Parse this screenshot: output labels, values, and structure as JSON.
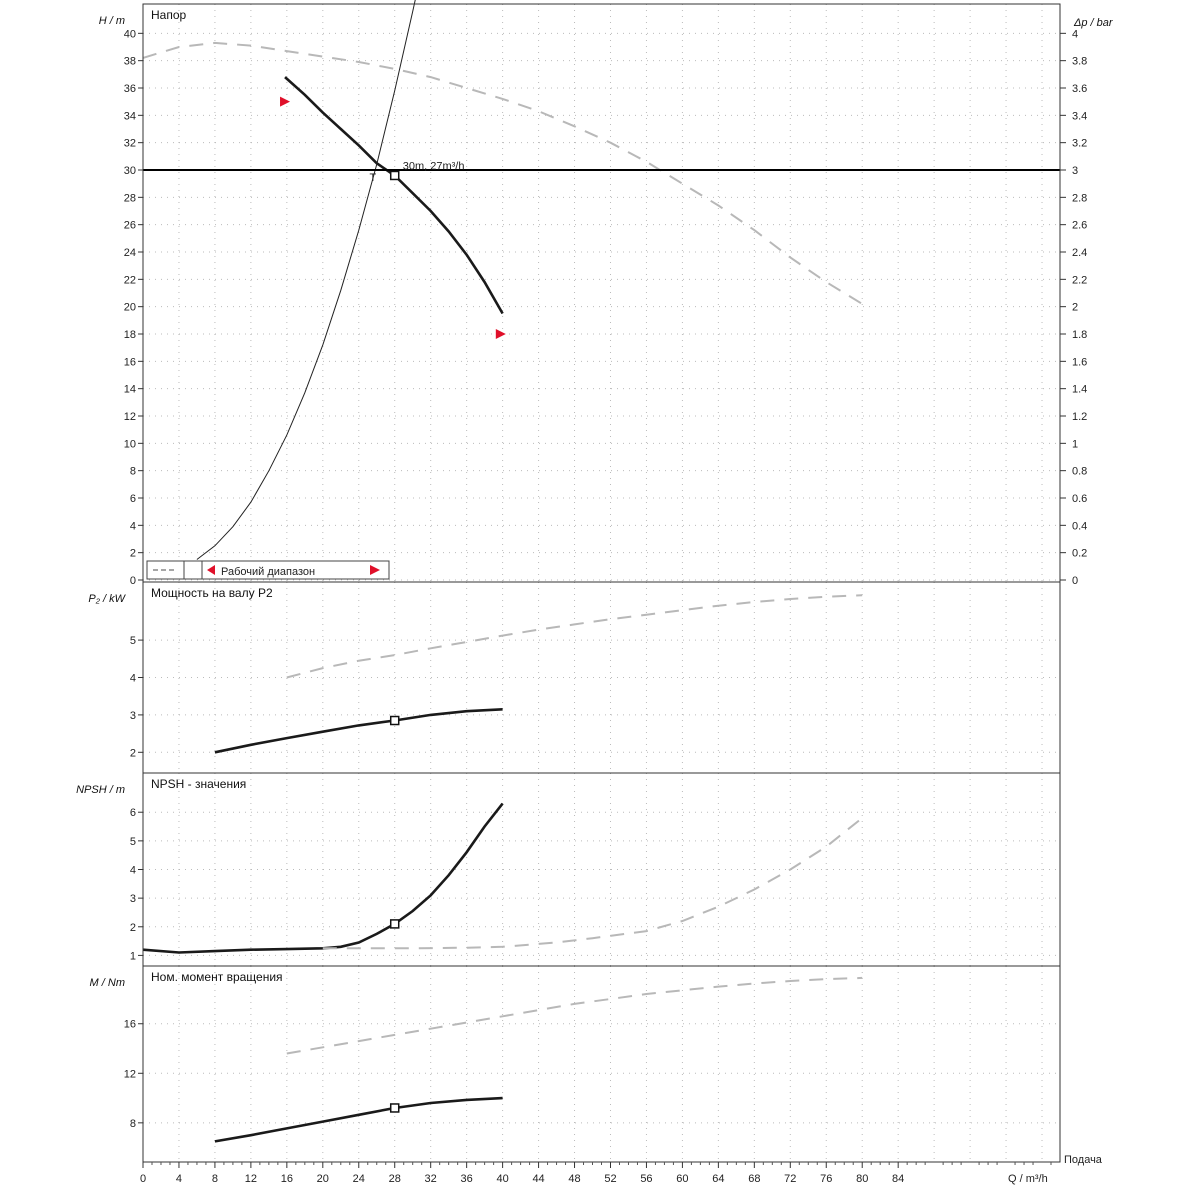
{
  "chart_data": [
    {
      "type": "line",
      "title": "Напор",
      "ylabel": "H / m",
      "y2label": "Δp / bar",
      "xlim": [
        0,
        102
      ],
      "ylim": [
        0,
        42
      ],
      "y2lim": [
        0,
        4.2
      ],
      "yticks": [
        "0",
        "2",
        "4",
        "6",
        "8",
        "10",
        "12",
        "14",
        "16",
        "18",
        "20",
        "22",
        "24",
        "26",
        "28",
        "30",
        "32",
        "34",
        "36",
        "38",
        "40"
      ],
      "y2ticks": [
        "0",
        "0.2",
        "0.4",
        "0.6",
        "0.8",
        "1",
        "1.2",
        "1.4",
        "1.6",
        "1.8",
        "2",
        "2.2",
        "2.4",
        "2.6",
        "2.8",
        "3",
        "3.2",
        "3.4",
        "3.6",
        "3.8",
        "4"
      ],
      "operating_point_label": "30m, 27m³/h",
      "duty_head": 30,
      "annotations": {
        "duty_marker": "T",
        "range_legend": "Рабочий диапазон"
      },
      "grid": true,
      "series": [
        {
          "role": "pump_curve",
          "style": "solid",
          "x": [
            15.8,
            18,
            20,
            22,
            24,
            26,
            28,
            30,
            32,
            34,
            36,
            38,
            40
          ],
          "y": [
            36.8,
            35.5,
            34.2,
            33.0,
            31.8,
            30.5,
            29.6,
            28.3,
            27.0,
            25.5,
            23.8,
            21.8,
            19.5
          ]
        },
        {
          "role": "system_curve",
          "style": "thin",
          "x": [
            6,
            8,
            10,
            12,
            14,
            16,
            18,
            20,
            22,
            24,
            26,
            28,
            30,
            31
          ],
          "y": [
            1.5,
            2.5,
            3.9,
            5.7,
            8.0,
            10.6,
            13.7,
            17.2,
            21.2,
            25.6,
            30.4,
            35.8,
            41.6,
            44.6
          ]
        },
        {
          "role": "max_speed_curve",
          "style": "dashed-grey",
          "x": [
            0,
            4,
            8,
            12,
            16,
            20,
            24,
            28,
            32,
            36,
            40,
            44,
            48,
            52,
            56,
            60,
            64,
            68,
            72,
            76,
            80
          ],
          "y": [
            38.2,
            39.0,
            39.3,
            39.1,
            38.7,
            38.3,
            37.9,
            37.4,
            36.8,
            36.0,
            35.2,
            34.3,
            33.2,
            32.0,
            30.6,
            29.0,
            27.4,
            25.6,
            23.6,
            21.8,
            20.2
          ]
        }
      ],
      "range_markers": [
        {
          "x": 15.8,
          "y": 35
        },
        {
          "x": 39.8,
          "y": 18
        }
      ]
    },
    {
      "type": "line",
      "title": "Мощность на валу P2",
      "ylabel": "P₂ / kW",
      "ylim": [
        1.5,
        6.5
      ],
      "yticks": [
        "2",
        "3",
        "4",
        "5"
      ],
      "grid": true,
      "series": [
        {
          "role": "nominal",
          "style": "solid",
          "x": [
            8,
            12,
            16,
            20,
            24,
            28,
            32,
            36,
            40
          ],
          "y": [
            2.0,
            2.2,
            2.38,
            2.55,
            2.72,
            2.85,
            3.0,
            3.1,
            3.15
          ]
        },
        {
          "role": "max_speed",
          "style": "dashed-grey",
          "x": [
            16,
            20,
            24,
            28,
            32,
            36,
            40,
            44,
            48,
            52,
            56,
            60,
            64,
            68,
            72,
            76,
            80
          ],
          "y": [
            4.0,
            4.25,
            4.45,
            4.6,
            4.78,
            4.95,
            5.12,
            5.28,
            5.42,
            5.56,
            5.68,
            5.8,
            5.92,
            6.02,
            6.1,
            6.16,
            6.2
          ]
        }
      ],
      "operating_point": {
        "x": 28,
        "y": 2.85
      }
    },
    {
      "type": "line",
      "title": "NPSH - значения",
      "ylabel": "NPSH / m",
      "ylim": [
        0.7,
        7.3
      ],
      "yticks": [
        "1",
        "2",
        "3",
        "4",
        "5",
        "6"
      ],
      "grid": true,
      "series": [
        {
          "role": "nominal",
          "style": "solid",
          "x": [
            0,
            4,
            8,
            12,
            16,
            20,
            22,
            24,
            26,
            28,
            30,
            32,
            34,
            36,
            38,
            40
          ],
          "y": [
            1.2,
            1.1,
            1.15,
            1.2,
            1.22,
            1.25,
            1.3,
            1.45,
            1.75,
            2.1,
            2.55,
            3.1,
            3.8,
            4.6,
            5.5,
            6.3
          ]
        },
        {
          "role": "max_speed",
          "style": "dashed-grey",
          "x": [
            20,
            30,
            36,
            40,
            46,
            50,
            56,
            60,
            64,
            68,
            72,
            76,
            80
          ],
          "y": [
            1.25,
            1.25,
            1.27,
            1.3,
            1.45,
            1.6,
            1.85,
            2.2,
            2.7,
            3.3,
            4.0,
            4.8,
            5.8
          ]
        }
      ],
      "operating_point": {
        "x": 28,
        "y": 2.1
      }
    },
    {
      "type": "line",
      "title": "Ном. момент вращения",
      "ylabel": "M / Nm",
      "xlabel": "Подача",
      "xunit": "Q / m³/h",
      "ylim": [
        5,
        20.5
      ],
      "yticks": [
        "8",
        "12",
        "16"
      ],
      "xticks": [
        "0",
        "4",
        "8",
        "12",
        "16",
        "20",
        "24",
        "28",
        "32",
        "36",
        "40",
        "44",
        "48",
        "52",
        "56",
        "60",
        "64",
        "68",
        "72",
        "76",
        "80",
        "84"
      ],
      "grid": true,
      "series": [
        {
          "role": "nominal",
          "style": "solid",
          "x": [
            8,
            12,
            16,
            20,
            24,
            28,
            32,
            36,
            40
          ],
          "y": [
            6.5,
            7.0,
            7.55,
            8.1,
            8.65,
            9.2,
            9.6,
            9.85,
            10.0
          ]
        },
        {
          "role": "max_speed",
          "style": "dashed-grey",
          "x": [
            16,
            20,
            24,
            28,
            32,
            36,
            40,
            44,
            48,
            52,
            56,
            60,
            64,
            68,
            72,
            76,
            80
          ],
          "y": [
            13.6,
            14.1,
            14.6,
            15.1,
            15.6,
            16.1,
            16.6,
            17.1,
            17.6,
            18.0,
            18.4,
            18.7,
            19.0,
            19.25,
            19.45,
            19.6,
            19.7
          ]
        }
      ],
      "operating_point": {
        "x": 28,
        "y": 9.2
      }
    }
  ]
}
